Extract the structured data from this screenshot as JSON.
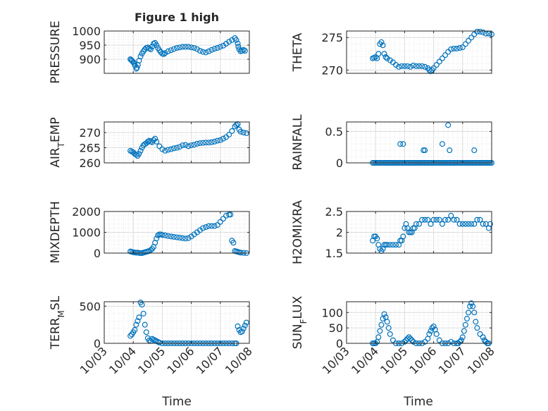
{
  "figure_title": "Figure 1 high",
  "colors": {
    "marker": "#0072bd",
    "axis": "#262626",
    "grid": "#dcdcdc",
    "minor_grid": "#e8e8e8"
  },
  "chart_data": [
    {
      "type": "scatter",
      "ylabel": "PRESSURE",
      "yticks": [
        900,
        950,
        1000
      ],
      "ylim": [
        850,
        1000
      ],
      "xlim": [
        0,
        5
      ],
      "xticks": [
        "10/03",
        "10/04",
        "10/05",
        "10/06",
        "10/07",
        "10/08"
      ],
      "grid": true,
      "x": [
        0.9,
        0.93,
        0.96,
        1.0,
        1.03,
        1.06,
        1.1,
        1.13,
        1.16,
        1.2,
        1.25,
        1.3,
        1.35,
        1.4,
        1.45,
        1.5,
        1.55,
        1.6,
        1.65,
        1.7,
        1.75,
        1.8,
        1.85,
        1.9,
        1.95,
        2.0,
        2.05,
        2.1,
        2.2,
        2.3,
        2.4,
        2.5,
        2.6,
        2.7,
        2.8,
        2.9,
        3.0,
        3.1,
        3.2,
        3.3,
        3.4,
        3.5,
        3.6,
        3.7,
        3.8,
        3.9,
        4.0,
        4.1,
        4.2,
        4.3,
        4.4,
        4.5,
        4.55,
        4.6,
        4.62,
        4.65,
        4.7,
        4.75,
        4.8,
        4.85
      ],
      "y": [
        900,
        897,
        894,
        890,
        885,
        878,
        866,
        870,
        880,
        895,
        910,
        920,
        928,
        935,
        940,
        942,
        938,
        935,
        945,
        955,
        958,
        950,
        940,
        932,
        925,
        920,
        918,
        922,
        928,
        932,
        936,
        940,
        942,
        944,
        944,
        944,
        942,
        940,
        936,
        930,
        926,
        924,
        928,
        933,
        937,
        940,
        944,
        948,
        955,
        962,
        968,
        975,
        968,
        956,
        945,
        935,
        928,
        930,
        933,
        930
      ]
    },
    {
      "type": "scatter",
      "ylabel": "THETA",
      "yticks": [
        270,
        275
      ],
      "ylim": [
        269.5,
        276
      ],
      "xlim": [
        0,
        5
      ],
      "xticks": [
        "10/03",
        "10/04",
        "10/05",
        "10/06",
        "10/07",
        "10/08"
      ],
      "grid": true,
      "x": [
        0.9,
        0.95,
        1.0,
        1.05,
        1.1,
        1.15,
        1.2,
        1.25,
        1.3,
        1.35,
        1.4,
        1.5,
        1.6,
        1.7,
        1.8,
        1.9,
        2.0,
        2.1,
        2.2,
        2.3,
        2.4,
        2.5,
        2.6,
        2.7,
        2.8,
        2.85,
        2.9,
        2.95,
        3.0,
        3.1,
        3.2,
        3.3,
        3.4,
        3.5,
        3.6,
        3.7,
        3.8,
        3.9,
        4.0,
        4.1,
        4.2,
        4.3,
        4.4,
        4.5,
        4.6,
        4.7,
        4.8,
        4.9,
        5.0
      ],
      "y": [
        271.8,
        271.9,
        272,
        271.8,
        272.5,
        274,
        274.3,
        273.8,
        272.5,
        272,
        271.8,
        271.5,
        271.2,
        270.8,
        270.5,
        270.6,
        270.6,
        270.6,
        270.5,
        270.7,
        270.6,
        270.6,
        270.6,
        270.5,
        270.3,
        270.0,
        269.8,
        270.0,
        270.3,
        270.8,
        271.3,
        271.8,
        272.3,
        272.8,
        273.2,
        273.3,
        273.3,
        273.4,
        273.5,
        274.0,
        274.5,
        275.0,
        275.5,
        275.9,
        275.9,
        275.8,
        275.6,
        275.6,
        275.5
      ]
    },
    {
      "type": "scatter",
      "ylabel": "AIR_TEMP",
      "yticks": [
        260,
        265,
        270
      ],
      "ylim": [
        260,
        273.5
      ],
      "xlim": [
        0,
        5
      ],
      "xticks": [
        "10/03",
        "10/04",
        "10/05",
        "10/06",
        "10/07",
        "10/08"
      ],
      "grid": true,
      "x": [
        0.9,
        0.95,
        1.0,
        1.05,
        1.1,
        1.15,
        1.2,
        1.25,
        1.3,
        1.35,
        1.4,
        1.45,
        1.5,
        1.55,
        1.6,
        1.65,
        1.7,
        1.75,
        1.8,
        1.9,
        2.0,
        2.1,
        2.2,
        2.3,
        2.4,
        2.5,
        2.6,
        2.7,
        2.8,
        2.9,
        3.0,
        3.1,
        3.2,
        3.3,
        3.4,
        3.5,
        3.6,
        3.7,
        3.8,
        3.9,
        4.0,
        4.1,
        4.2,
        4.3,
        4.4,
        4.5,
        4.55,
        4.6,
        4.65,
        4.7,
        4.8,
        4.9
      ],
      "y": [
        264,
        263.7,
        263.5,
        263,
        262.7,
        262.3,
        263,
        264,
        265,
        265.8,
        266.2,
        266.5,
        267,
        267.3,
        267,
        266.8,
        267.5,
        268,
        267,
        265.5,
        264.5,
        264,
        264.3,
        264.5,
        264.8,
        265,
        265.3,
        265.8,
        265.9,
        265.5,
        265.8,
        266,
        266.3,
        266.5,
        266.6,
        266.7,
        266.7,
        266.8,
        267,
        267.3,
        267.5,
        268,
        268.5,
        269.3,
        270.5,
        272,
        272.5,
        272.8,
        271,
        270.3,
        270,
        269.8
      ]
    },
    {
      "type": "scatter",
      "ylabel": "RAINFALL",
      "yticks": [
        0,
        0.5
      ],
      "ylim": [
        0,
        0.65
      ],
      "xlim": [
        0,
        5
      ],
      "xticks": [
        "10/03",
        "10/04",
        "10/05",
        "10/06",
        "10/07",
        "10/08"
      ],
      "grid": true,
      "x": [
        0.9,
        0.95,
        1.0,
        1.05,
        1.1,
        1.15,
        1.2,
        1.25,
        1.3,
        1.35,
        1.4,
        1.45,
        1.5,
        1.55,
        1.6,
        1.65,
        1.7,
        1.75,
        1.8,
        1.85,
        1.9,
        1.95,
        2.0,
        2.05,
        2.1,
        2.15,
        2.2,
        2.25,
        2.3,
        2.35,
        2.4,
        2.45,
        2.5,
        2.55,
        2.6,
        2.65,
        2.7,
        2.75,
        2.8,
        2.85,
        2.9,
        2.95,
        3.0,
        3.05,
        3.1,
        3.15,
        3.2,
        3.25,
        3.3,
        3.35,
        3.4,
        3.45,
        3.5,
        3.55,
        3.6,
        3.65,
        3.7,
        3.75,
        3.8,
        3.85,
        3.9,
        3.95,
        4.0,
        4.05,
        4.1,
        4.15,
        4.2,
        4.25,
        4.3,
        4.35,
        4.4,
        4.45,
        4.5,
        4.55,
        4.6,
        4.65,
        4.7,
        4.75,
        4.8,
        4.85,
        4.9,
        4.95,
        5.0,
        1.85,
        1.95,
        2.65,
        2.7,
        3.3,
        3.5,
        3.55,
        4.4
      ],
      "y": [
        0,
        0,
        0,
        0,
        0,
        0,
        0,
        0,
        0,
        0,
        0,
        0,
        0,
        0,
        0,
        0,
        0,
        0,
        0,
        0,
        0,
        0,
        0,
        0,
        0,
        0,
        0,
        0,
        0,
        0,
        0,
        0,
        0,
        0,
        0,
        0,
        0,
        0,
        0,
        0,
        0,
        0,
        0,
        0,
        0,
        0,
        0,
        0,
        0,
        0,
        0,
        0,
        0,
        0,
        0,
        0,
        0,
        0,
        0,
        0,
        0,
        0,
        0,
        0,
        0,
        0,
        0,
        0,
        0,
        0,
        0,
        0,
        0,
        0,
        0,
        0,
        0,
        0,
        0,
        0,
        0,
        0,
        0,
        0.3,
        0.3,
        0.2,
        0.2,
        0.3,
        0.6,
        0.2,
        0.2
      ]
    },
    {
      "type": "scatter",
      "ylabel": "MIXDEPTH",
      "yticks": [
        0,
        1000,
        2000
      ],
      "ylim": [
        0,
        2000
      ],
      "xlim": [
        0,
        5
      ],
      "xticks": [
        "10/03",
        "10/04",
        "10/05",
        "10/06",
        "10/07",
        "10/08"
      ],
      "grid": true,
      "x": [
        0.9,
        0.95,
        1.0,
        1.05,
        1.1,
        1.15,
        1.2,
        1.25,
        1.3,
        1.35,
        1.4,
        1.45,
        1.5,
        1.55,
        1.6,
        1.65,
        1.7,
        1.75,
        1.8,
        1.85,
        1.9,
        1.95,
        2.0,
        2.1,
        2.2,
        2.3,
        2.4,
        2.5,
        2.6,
        2.7,
        2.8,
        2.9,
        3.0,
        3.1,
        3.2,
        3.3,
        3.4,
        3.5,
        3.6,
        3.7,
        3.8,
        3.9,
        4.0,
        4.1,
        4.2,
        4.3,
        4.35,
        4.4,
        4.45,
        4.5,
        4.55,
        4.6,
        4.65,
        4.7,
        4.8,
        4.9
      ],
      "y": [
        80,
        60,
        40,
        30,
        20,
        20,
        10,
        0,
        0,
        20,
        40,
        60,
        80,
        100,
        150,
        200,
        300,
        500,
        700,
        850,
        900,
        900,
        870,
        850,
        820,
        800,
        780,
        760,
        740,
        720,
        700,
        720,
        800,
        900,
        1000,
        1100,
        1200,
        1250,
        1300,
        1300,
        1300,
        1350,
        1500,
        1650,
        1800,
        1850,
        1850,
        600,
        500,
        100,
        80,
        60,
        40,
        20,
        10,
        0
      ]
    },
    {
      "type": "scatter",
      "ylabel": "H2OMIXRA",
      "yticks": [
        1.5,
        2,
        2.5
      ],
      "ylim": [
        1.5,
        2.5
      ],
      "xlim": [
        0,
        5
      ],
      "xticks": [
        "10/03",
        "10/04",
        "10/05",
        "10/06",
        "10/07",
        "10/08"
      ],
      "grid": true,
      "x": [
        0.9,
        0.95,
        1.0,
        1.05,
        1.1,
        1.15,
        1.2,
        1.25,
        1.3,
        1.35,
        1.4,
        1.5,
        1.6,
        1.7,
        1.8,
        1.85,
        1.9,
        1.95,
        2.0,
        2.05,
        2.1,
        2.15,
        2.2,
        2.25,
        2.3,
        2.35,
        2.4,
        2.5,
        2.6,
        2.7,
        2.8,
        2.9,
        3.0,
        3.1,
        3.2,
        3.3,
        3.4,
        3.5,
        3.6,
        3.7,
        3.8,
        3.9,
        4.0,
        4.1,
        4.2,
        4.3,
        4.4,
        4.5,
        4.6,
        4.7,
        4.8,
        4.9,
        4.95
      ],
      "y": [
        1.8,
        1.9,
        1.9,
        1.85,
        1.7,
        1.6,
        1.55,
        1.6,
        1.7,
        1.7,
        1.7,
        1.7,
        1.7,
        1.7,
        1.7,
        1.8,
        1.8,
        1.9,
        2.1,
        2.2,
        2.1,
        2.0,
        2.0,
        2.0,
        2.1,
        2.1,
        2.2,
        2.2,
        2.3,
        2.3,
        2.3,
        2.2,
        2.3,
        2.3,
        2.3,
        2.2,
        2.3,
        2.3,
        2.4,
        2.3,
        2.3,
        2.2,
        2.2,
        2.2,
        2.2,
        2.2,
        2.2,
        2.3,
        2.3,
        2.2,
        2.2,
        2.1,
        2.2
      ]
    },
    {
      "type": "scatter",
      "ylabel": "TERR_MSL",
      "yticks": [
        0,
        500
      ],
      "ylim": [
        0,
        560
      ],
      "xlim": [
        0,
        5
      ],
      "xticks": [
        "10/03",
        "10/04",
        "10/05",
        "10/06",
        "10/07",
        "10/08"
      ],
      "grid": true,
      "x": [
        0.9,
        0.95,
        1.0,
        1.05,
        1.1,
        1.15,
        1.2,
        1.25,
        1.3,
        1.35,
        1.4,
        1.45,
        1.5,
        1.55,
        1.6,
        1.65,
        1.7,
        1.75,
        1.8,
        1.85,
        1.9,
        2.0,
        2.1,
        2.2,
        2.3,
        2.4,
        2.5,
        2.6,
        2.7,
        2.8,
        2.9,
        3.0,
        3.1,
        3.2,
        3.3,
        3.4,
        3.5,
        3.6,
        3.7,
        3.8,
        3.9,
        4.0,
        4.1,
        4.2,
        4.3,
        4.4,
        4.5,
        4.55,
        4.6,
        4.65,
        4.7,
        4.75,
        4.8,
        4.85,
        4.9
      ],
      "y": [
        100,
        120,
        150,
        180,
        250,
        300,
        350,
        550,
        520,
        400,
        250,
        150,
        70,
        40,
        30,
        60,
        50,
        40,
        30,
        20,
        10,
        0,
        0,
        0,
        0,
        0,
        0,
        0,
        0,
        0,
        0,
        0,
        0,
        0,
        0,
        0,
        0,
        0,
        0,
        0,
        0,
        0,
        0,
        0,
        0,
        0,
        0,
        0,
        230,
        180,
        150,
        160,
        200,
        240,
        280
      ]
    },
    {
      "type": "scatter",
      "ylabel": "SUN_FLUX",
      "yticks": [
        0,
        50,
        100
      ],
      "ylim": [
        0,
        135
      ],
      "xlim": [
        0,
        5
      ],
      "xticks": [
        "10/03",
        "10/04",
        "10/05",
        "10/06",
        "10/07",
        "10/08"
      ],
      "grid": true,
      "x": [
        0.9,
        0.95,
        1.0,
        1.05,
        1.1,
        1.15,
        1.2,
        1.25,
        1.3,
        1.35,
        1.4,
        1.45,
        1.5,
        1.6,
        1.7,
        1.8,
        1.9,
        2.0,
        2.05,
        2.1,
        2.15,
        2.2,
        2.25,
        2.3,
        2.4,
        2.5,
        2.6,
        2.7,
        2.8,
        2.85,
        2.9,
        2.95,
        3.0,
        3.05,
        3.1,
        3.2,
        3.3,
        3.4,
        3.5,
        3.6,
        3.7,
        3.8,
        3.85,
        3.9,
        3.95,
        4.0,
        4.05,
        4.1,
        4.15,
        4.2,
        4.25,
        4.3,
        4.35,
        4.4,
        4.45,
        4.5,
        4.6,
        4.7,
        4.75,
        4.8,
        4.85,
        4.9
      ],
      "y": [
        0,
        0,
        0,
        5,
        20,
        40,
        60,
        80,
        95,
        85,
        70,
        50,
        30,
        10,
        0,
        0,
        0,
        5,
        10,
        15,
        20,
        15,
        10,
        5,
        0,
        0,
        0,
        5,
        15,
        30,
        40,
        50,
        55,
        45,
        30,
        10,
        0,
        0,
        0,
        5,
        0,
        0,
        0,
        5,
        10,
        20,
        40,
        60,
        80,
        100,
        120,
        130,
        120,
        100,
        70,
        50,
        30,
        20,
        10,
        5,
        0,
        0
      ]
    }
  ],
  "xlabel_left": "Time",
  "xlabel_right": "Time"
}
